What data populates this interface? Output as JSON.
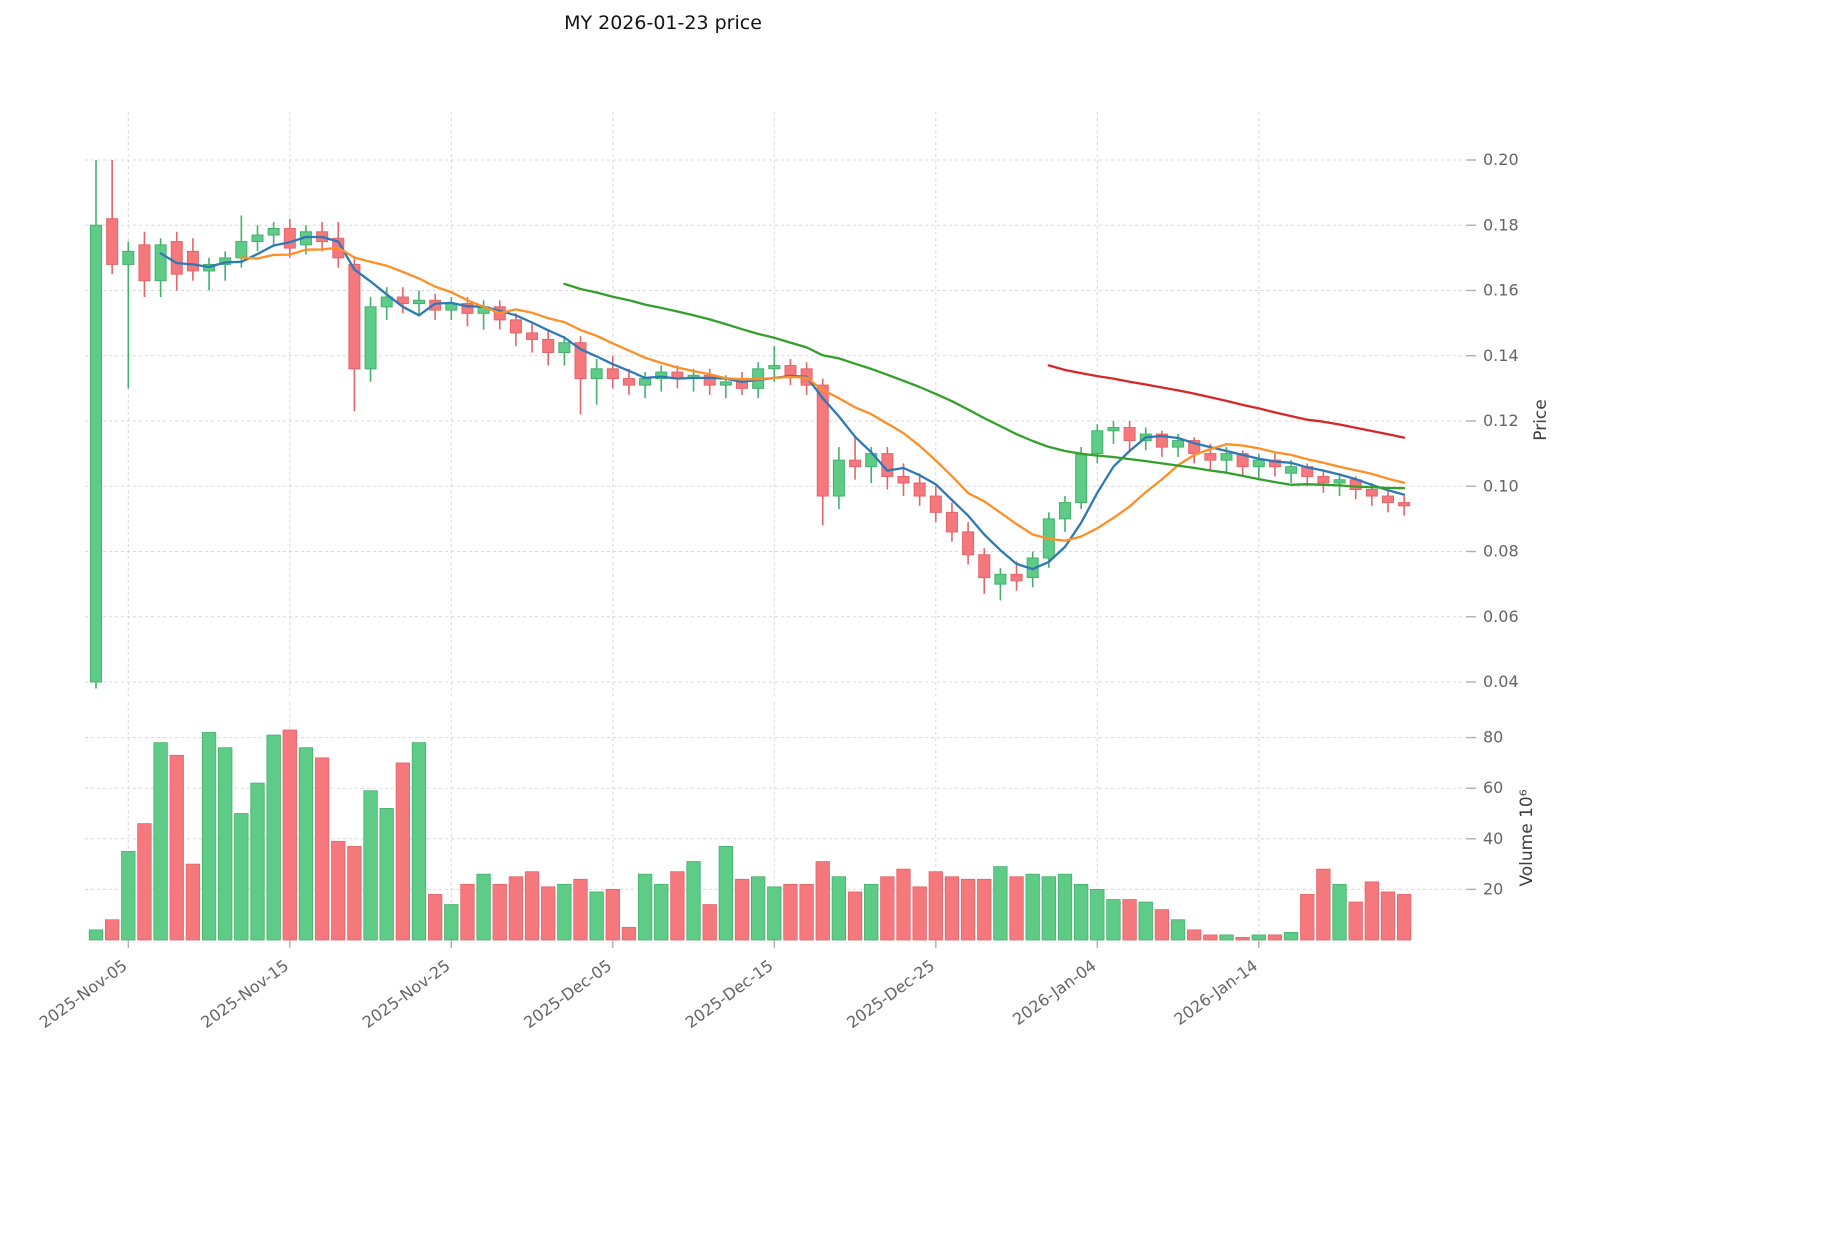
{
  "title": "MY  2026-01-23  price",
  "axes": {
    "price_label": "Price",
    "volume_label": "Volume  10⁶"
  },
  "chart_data": {
    "type": "candlestick",
    "title": "MY  2026-01-23  price",
    "ylabel": "Price",
    "volume_ylabel": "Volume 10⁶",
    "legend": "none",
    "grid": "dashed",
    "price_ticks": [
      0.04,
      0.06,
      0.08,
      0.1,
      0.12,
      0.14,
      0.16,
      0.18,
      0.2
    ],
    "volume_ticks": [
      20,
      40,
      60,
      80
    ],
    "price_range": [
      0.036,
      0.215
    ],
    "volume_range": [
      0,
      94
    ],
    "x_tick_labels": [
      "2025-Nov-05",
      "2025-Nov-15",
      "2025-Nov-25",
      "2025-Dec-05",
      "2025-Dec-15",
      "2025-Dec-25",
      "2026-Jan-04",
      "2026-Jan-14"
    ],
    "x_tick_indices": [
      2,
      12,
      22,
      32,
      42,
      52,
      62,
      72
    ],
    "dates": [
      "2025-11-03",
      "2025-11-04",
      "2025-11-05",
      "2025-11-06",
      "2025-11-07",
      "2025-11-08",
      "2025-11-09",
      "2025-11-10",
      "2025-11-11",
      "2025-11-12",
      "2025-11-13",
      "2025-11-14",
      "2025-11-15",
      "2025-11-16",
      "2025-11-17",
      "2025-11-18",
      "2025-11-19",
      "2025-11-20",
      "2025-11-21",
      "2025-11-22",
      "2025-11-23",
      "2025-11-24",
      "2025-11-25",
      "2025-11-26",
      "2025-11-27",
      "2025-11-28",
      "2025-11-29",
      "2025-11-30",
      "2025-12-01",
      "2025-12-02",
      "2025-12-03",
      "2025-12-04",
      "2025-12-05",
      "2025-12-06",
      "2025-12-07",
      "2025-12-08",
      "2025-12-09",
      "2025-12-10",
      "2025-12-11",
      "2025-12-12",
      "2025-12-13",
      "2025-12-14",
      "2025-12-15",
      "2025-12-16",
      "2025-12-17",
      "2025-12-18",
      "2025-12-19",
      "2025-12-20",
      "2025-12-21",
      "2025-12-22",
      "2025-12-23",
      "2025-12-24",
      "2025-12-25",
      "2025-12-26",
      "2025-12-27",
      "2025-12-28",
      "2025-12-29",
      "2025-12-30",
      "2025-12-31",
      "2026-01-01",
      "2026-01-02",
      "2026-01-03",
      "2026-01-04",
      "2026-01-05",
      "2026-01-06",
      "2026-01-07",
      "2026-01-08",
      "2026-01-09",
      "2026-01-10",
      "2026-01-11",
      "2026-01-12",
      "2026-01-13",
      "2026-01-14",
      "2026-01-15",
      "2026-01-16",
      "2026-01-17",
      "2026-01-18",
      "2026-01-19",
      "2026-01-20",
      "2026-01-21",
      "2026-01-22",
      "2026-01-23"
    ],
    "ohlc": {
      "open": [
        0.04,
        0.182,
        0.168,
        0.174,
        0.163,
        0.175,
        0.172,
        0.166,
        0.168,
        0.17,
        0.175,
        0.177,
        0.179,
        0.174,
        0.178,
        0.176,
        0.168,
        0.136,
        0.155,
        0.158,
        0.156,
        0.157,
        0.154,
        0.156,
        0.153,
        0.155,
        0.151,
        0.147,
        0.145,
        0.141,
        0.144,
        0.133,
        0.136,
        0.133,
        0.131,
        0.133,
        0.135,
        0.133,
        0.134,
        0.131,
        0.132,
        0.13,
        0.136,
        0.137,
        0.136,
        0.131,
        0.097,
        0.108,
        0.106,
        0.11,
        0.103,
        0.101,
        0.097,
        0.092,
        0.086,
        0.079,
        0.07,
        0.073,
        0.072,
        0.078,
        0.09,
        0.095,
        0.11,
        0.117,
        0.118,
        0.114,
        0.116,
        0.112,
        0.114,
        0.11,
        0.108,
        0.11,
        0.106,
        0.108,
        0.104,
        0.106,
        0.103,
        0.101,
        0.102,
        0.099,
        0.097,
        0.095
      ],
      "high": [
        0.2,
        0.2,
        0.175,
        0.178,
        0.176,
        0.178,
        0.176,
        0.17,
        0.172,
        0.183,
        0.18,
        0.181,
        0.182,
        0.18,
        0.181,
        0.181,
        0.17,
        0.158,
        0.161,
        0.161,
        0.16,
        0.159,
        0.158,
        0.158,
        0.157,
        0.157,
        0.153,
        0.15,
        0.148,
        0.146,
        0.146,
        0.139,
        0.14,
        0.136,
        0.135,
        0.137,
        0.137,
        0.136,
        0.136,
        0.134,
        0.135,
        0.138,
        0.143,
        0.139,
        0.138,
        0.133,
        0.112,
        0.115,
        0.112,
        0.112,
        0.107,
        0.104,
        0.1,
        0.095,
        0.089,
        0.081,
        0.075,
        0.077,
        0.08,
        0.092,
        0.097,
        0.112,
        0.119,
        0.12,
        0.12,
        0.118,
        0.117,
        0.116,
        0.115,
        0.113,
        0.112,
        0.111,
        0.11,
        0.11,
        0.108,
        0.107,
        0.105,
        0.104,
        0.103,
        0.101,
        0.099,
        0.097
      ],
      "low": [
        0.038,
        0.165,
        0.13,
        0.158,
        0.158,
        0.16,
        0.163,
        0.16,
        0.163,
        0.167,
        0.172,
        0.174,
        0.17,
        0.171,
        0.172,
        0.167,
        0.123,
        0.132,
        0.151,
        0.153,
        0.152,
        0.151,
        0.151,
        0.149,
        0.148,
        0.148,
        0.143,
        0.141,
        0.137,
        0.137,
        0.122,
        0.125,
        0.13,
        0.128,
        0.127,
        0.129,
        0.13,
        0.129,
        0.128,
        0.127,
        0.128,
        0.127,
        0.132,
        0.131,
        0.128,
        0.088,
        0.093,
        0.102,
        0.101,
        0.099,
        0.097,
        0.094,
        0.089,
        0.083,
        0.076,
        0.067,
        0.065,
        0.068,
        0.069,
        0.075,
        0.086,
        0.093,
        0.107,
        0.113,
        0.111,
        0.111,
        0.109,
        0.109,
        0.107,
        0.105,
        0.104,
        0.103,
        0.102,
        0.103,
        0.101,
        0.1,
        0.098,
        0.097,
        0.096,
        0.094,
        0.092,
        0.091
      ],
      "close": [
        0.18,
        0.168,
        0.172,
        0.163,
        0.174,
        0.165,
        0.166,
        0.168,
        0.17,
        0.175,
        0.177,
        0.179,
        0.173,
        0.178,
        0.175,
        0.17,
        0.136,
        0.155,
        0.158,
        0.156,
        0.157,
        0.154,
        0.156,
        0.153,
        0.155,
        0.151,
        0.147,
        0.145,
        0.141,
        0.144,
        0.133,
        0.136,
        0.133,
        0.131,
        0.133,
        0.135,
        0.133,
        0.134,
        0.131,
        0.132,
        0.13,
        0.136,
        0.137,
        0.134,
        0.131,
        0.097,
        0.108,
        0.106,
        0.11,
        0.103,
        0.101,
        0.097,
        0.092,
        0.086,
        0.079,
        0.072,
        0.073,
        0.071,
        0.078,
        0.09,
        0.095,
        0.11,
        0.117,
        0.118,
        0.114,
        0.116,
        0.112,
        0.114,
        0.11,
        0.108,
        0.11,
        0.106,
        0.108,
        0.106,
        0.106,
        0.103,
        0.101,
        0.102,
        0.099,
        0.097,
        0.095,
        0.094
      ]
    },
    "volume": [
      4,
      8,
      35,
      46,
      78,
      73,
      30,
      82,
      76,
      50,
      62,
      81,
      83,
      76,
      72,
      39,
      37,
      59,
      52,
      70,
      78,
      18,
      14,
      22,
      26,
      22,
      25,
      27,
      21,
      22,
      24,
      19,
      20,
      5,
      26,
      22,
      27,
      31,
      14,
      37,
      24,
      25,
      21,
      22,
      22,
      31,
      25,
      19,
      22,
      25,
      28,
      21,
      27,
      25,
      24,
      24,
      29,
      25,
      26,
      25,
      26,
      22,
      20,
      16,
      16,
      15,
      12,
      8,
      4,
      2,
      2,
      1,
      2,
      2,
      3,
      18,
      28,
      22,
      15,
      23,
      19,
      18
    ],
    "moving_averages": [
      {
        "name": "SMA5",
        "window": 5,
        "color": "#2e79b5"
      },
      {
        "name": "SMA10",
        "window": 10,
        "color": "#fe8f27"
      },
      {
        "name": "SMA30",
        "window": 30,
        "color": "#33a02c"
      },
      {
        "name": "SMA60",
        "window": 60,
        "color": "#d62728"
      }
    ],
    "colors": {
      "up": "#5ecb87",
      "up_edge": "#43b06d",
      "down": "#f4787c",
      "down_edge": "#e2656b",
      "grid": "#d8d8d8",
      "tick_text": "#656565"
    }
  }
}
